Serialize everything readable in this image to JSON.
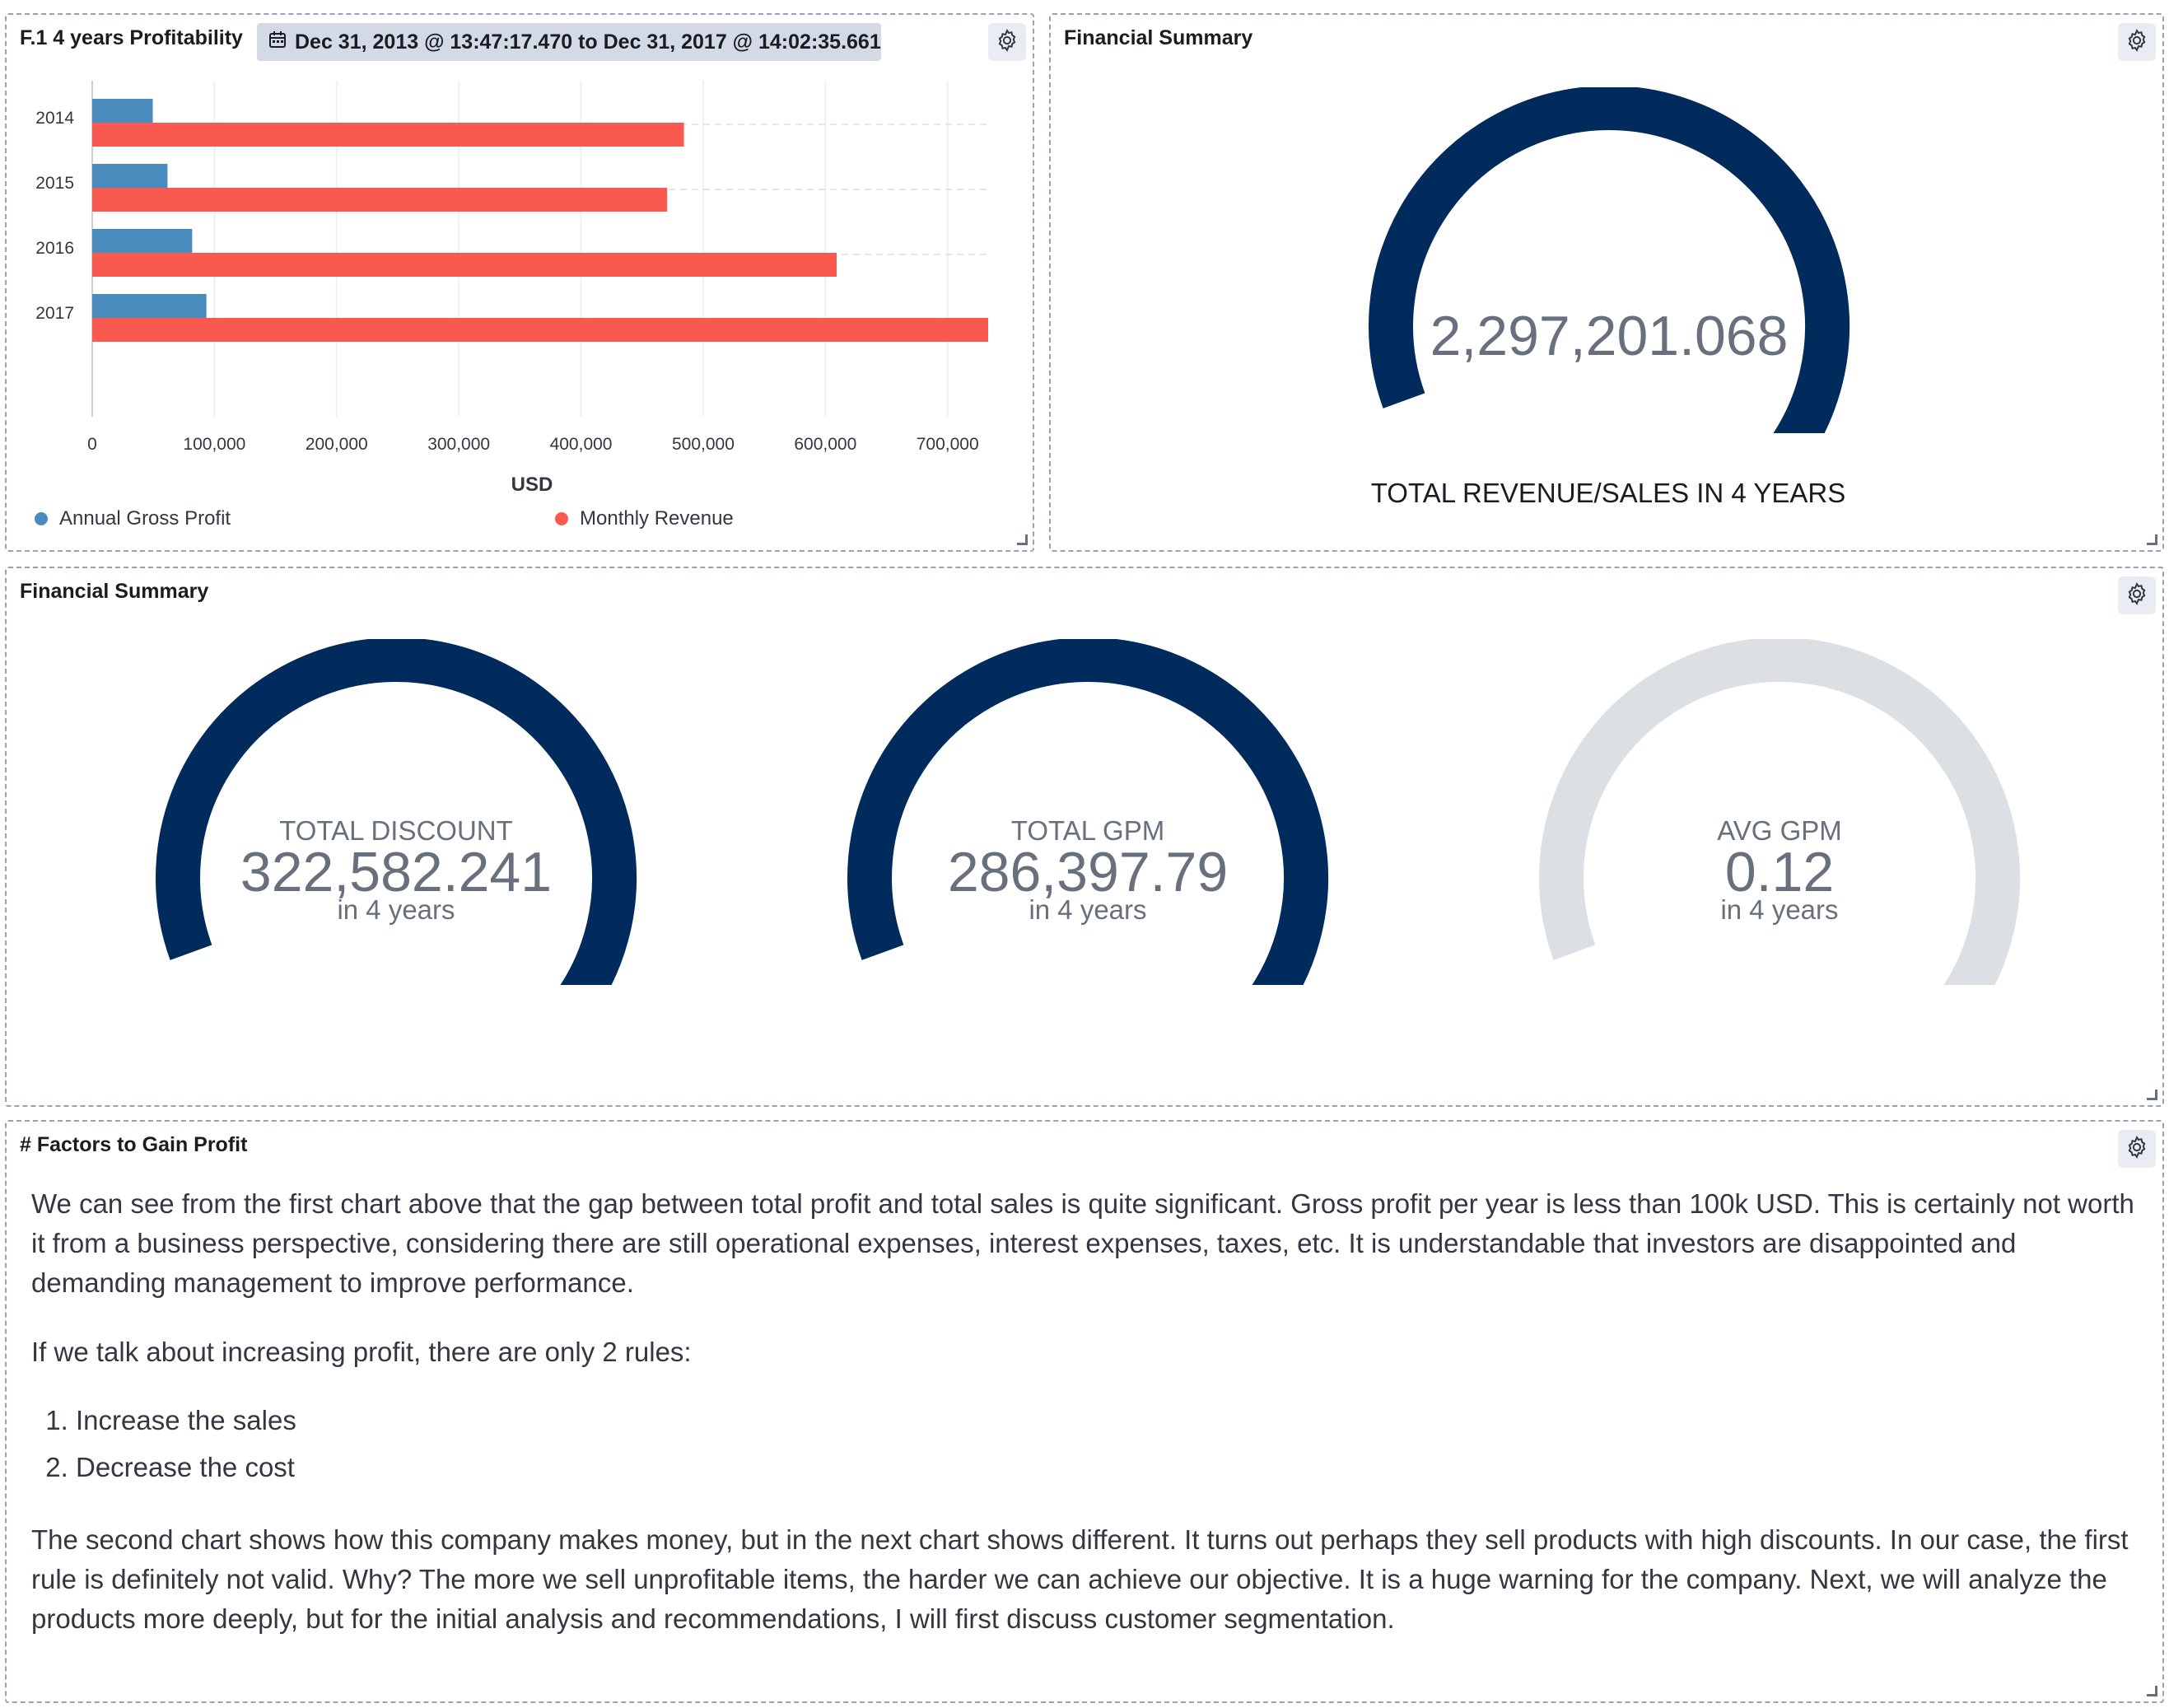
{
  "panel1": {
    "title": "F.1 4 years Profitability",
    "time_range": "Dec 31, 2013 @ 13:47:17.470 to Dec 31, 2017 @ 14:02:35.661",
    "legend": [
      {
        "label": "Annual Gross Profit",
        "color": "#4a8bbd"
      },
      {
        "label": "Monthly Revenue",
        "color": "#f9594e"
      }
    ]
  },
  "chart_data": {
    "type": "bar",
    "orientation": "horizontal",
    "categories": [
      "2014",
      "2015",
      "2016",
      "2017"
    ],
    "series": [
      {
        "name": "Annual Gross Profit",
        "values": [
          49544,
          61619,
          81795,
          93439
        ],
        "color": "#4a8bbd"
      },
      {
        "name": "Monthly Revenue",
        "values": [
          484247,
          470533,
          609206,
          733215
        ],
        "color": "#f9594e"
      }
    ],
    "xlabel": "USD",
    "xticks": [
      "0",
      "100,000",
      "200,000",
      "300,000",
      "400,000",
      "500,000",
      "600,000",
      "700,000"
    ],
    "xlim": [
      0,
      733215
    ],
    "grid": true,
    "legend_position": "bottom"
  },
  "panel2": {
    "title": "Financial Summary",
    "value": "2,297,201.068",
    "caption": "TOTAL REVENUE/SALES IN 4 YEARS",
    "fill": 1.0
  },
  "panel3": {
    "title": "Financial Summary",
    "gauges": [
      {
        "label": "TOTAL DISCOUNT",
        "value": "322,582.241",
        "sub": "in 4 years",
        "fill": 1.0
      },
      {
        "label": "TOTAL GPM",
        "value": "286,397.79",
        "sub": "in 4 years",
        "fill": 1.0
      },
      {
        "label": "AVG GPM",
        "value": "0.12",
        "sub": "in 4 years",
        "fill": 0.0
      }
    ]
  },
  "panel4": {
    "title": "# Factors to Gain Profit",
    "paragraphs": [
      "We can see from the first chart above that the gap between total profit and total sales is quite significant. Gross profit per year is less than 100k USD. This is certainly not worth it from a business perspective, considering there are still operational expenses, interest expenses, taxes, etc. It is understandable that investors are disappointed and demanding management to improve performance.",
      "If we talk about increasing profit, there are only 2 rules:",
      "The second chart shows how this company makes money, but in the next chart shows different. It turns out perhaps they sell products with high discounts. In our case, the first rule is definitely not valid. Why? The more we sell unprofitable items, the harder we can achieve our objective. It is a huge warning for the company. Next, we will analyze the products more deeply, but for the initial analysis and recommendations, I will first discuss customer segmentation."
    ],
    "list": [
      "Increase the sales",
      "Decrease the cost"
    ]
  },
  "colors": {
    "gauge_fill": "#002b5c",
    "gauge_track": "#dcdfe4",
    "profit": "#4a8bbd",
    "revenue": "#f9594e"
  },
  "icons": [
    "gear-icon",
    "calendar-icon",
    "resize-handle-icon"
  ]
}
